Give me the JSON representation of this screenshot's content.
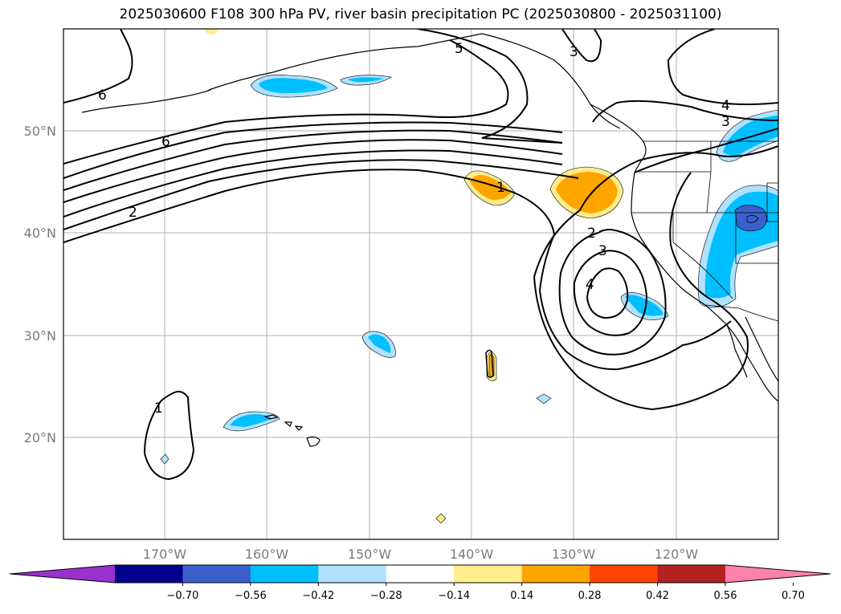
{
  "title": "2025030600 F108 300 hPa PV, river basin precipitation PC (2025030800 - 2025031100)",
  "map": {
    "lon_labels": [
      "170°W",
      "160°W",
      "150°W",
      "140°W",
      "130°W",
      "120°W"
    ],
    "lat_labels": [
      "50°N",
      "40°N",
      "30°N",
      "20°N"
    ],
    "contour_labels": [
      "6",
      "6",
      "2",
      "5",
      "3",
      "4",
      "3",
      "1",
      "2",
      "3",
      "4",
      "1"
    ]
  },
  "colorbar": {
    "ticks": [
      "−0.70",
      "−0.56",
      "−0.42",
      "−0.28",
      "−0.14",
      "0.14",
      "0.28",
      "0.42",
      "0.56",
      "0.70"
    ],
    "colors": [
      "#9932cc",
      "#00008b",
      "#3a5fcd",
      "#00bfff",
      "#b0e2ff",
      "#ffffff",
      "#ffec8b",
      "#ffa500",
      "#ff4500",
      "#b22222",
      "#ff82ab"
    ]
  },
  "colors": {
    "frame": "#000000",
    "grid": "#b0b0b0",
    "contour": "#000000"
  }
}
